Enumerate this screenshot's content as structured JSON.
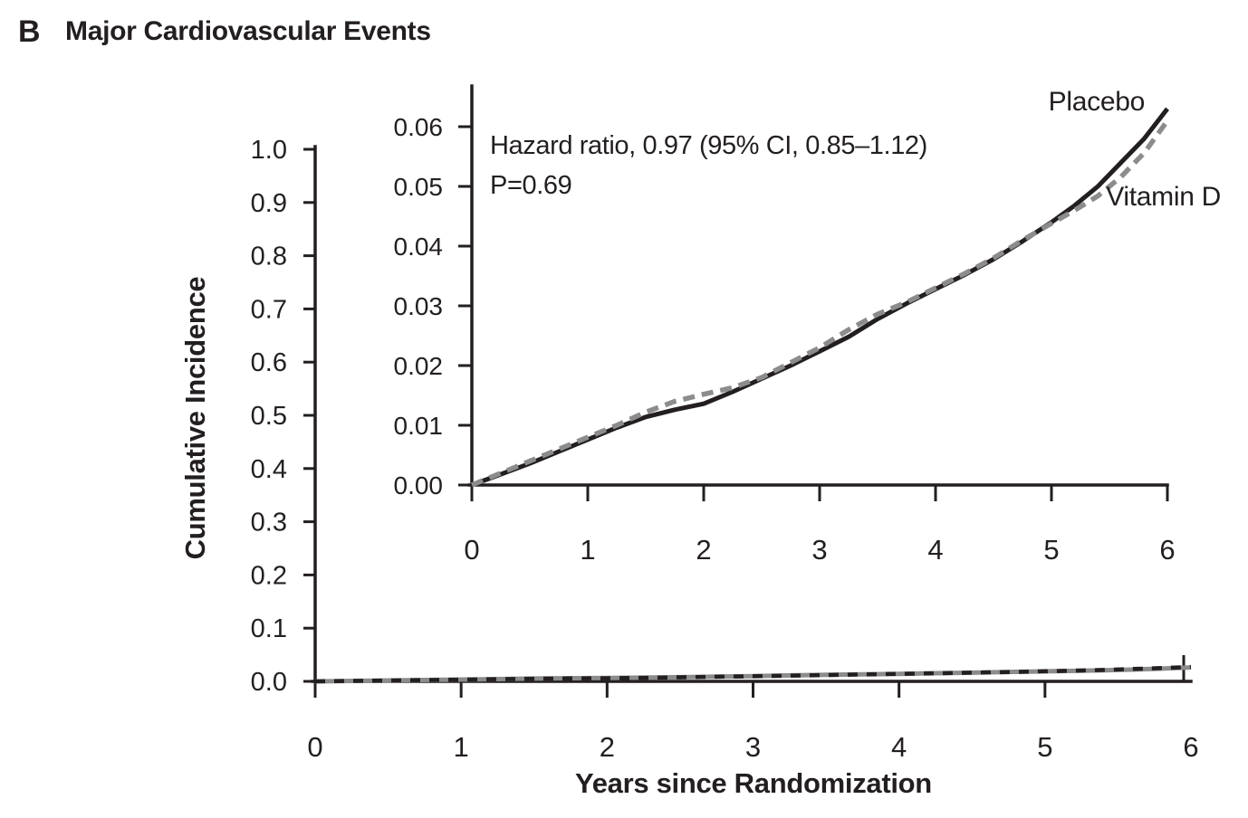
{
  "figure": {
    "panel_label": "B",
    "title": "Major Cardiovascular Events"
  },
  "legend": {
    "placebo": "Placebo",
    "vitamin_d": "Vitamin D"
  },
  "annotation": {
    "line1": "Hazard ratio, 0.97 (95% CI, 0.85–1.12)",
    "line2": "P=0.69"
  },
  "chart_data": {
    "type": "line",
    "title": "B Major Cardiovascular Events",
    "xlabel": "Years since Randomization",
    "ylabel": "Cumulative Incidence",
    "grid": false,
    "legend_position": "inline-right-of-curves",
    "annotation": [
      "Hazard ratio, 0.97 (95% CI, 0.85–1.12)",
      "P=0.69"
    ],
    "main_panel": {
      "xlim": [
        0,
        6
      ],
      "ylim": [
        0,
        1.0
      ],
      "xticks": [
        "0",
        "1",
        "2",
        "3",
        "4",
        "5",
        "6"
      ],
      "yticks": [
        "0.0",
        "0.1",
        "0.2",
        "0.3",
        "0.4",
        "0.5",
        "0.6",
        "0.7",
        "0.8",
        "0.9",
        "1.0"
      ]
    },
    "inset_panel": {
      "xlim": [
        0,
        6
      ],
      "ylim": [
        0,
        0.06
      ],
      "xticks": [
        "0",
        "1",
        "2",
        "3",
        "4",
        "5",
        "6"
      ],
      "yticks": [
        "0.00",
        "0.01",
        "0.02",
        "0.03",
        "0.04",
        "0.05",
        "0.06"
      ]
    },
    "series": [
      {
        "name": "Placebo",
        "color": "#231f20",
        "line_style": "solid",
        "x": [
          0,
          0.25,
          0.5,
          0.75,
          1,
          1.25,
          1.5,
          1.75,
          2,
          2.25,
          2.5,
          2.75,
          3,
          3.25,
          3.5,
          3.75,
          4,
          4.25,
          4.5,
          4.75,
          5,
          5.2,
          5.4,
          5.6,
          5.8,
          6
        ],
        "y": [
          0,
          0.0018,
          0.0036,
          0.0056,
          0.0076,
          0.0096,
          0.0114,
          0.0126,
          0.0136,
          0.0156,
          0.0178,
          0.02,
          0.0224,
          0.0248,
          0.0278,
          0.0304,
          0.0328,
          0.0352,
          0.0378,
          0.0408,
          0.044,
          0.0468,
          0.05,
          0.054,
          0.058,
          0.063
        ]
      },
      {
        "name": "Vitamin D",
        "color": "#8c8c8c",
        "line_style": "dashed",
        "x": [
          0,
          0.25,
          0.5,
          0.75,
          1,
          1.25,
          1.5,
          1.75,
          2,
          2.25,
          2.5,
          2.75,
          3,
          3.25,
          3.5,
          3.75,
          4,
          4.25,
          4.5,
          4.75,
          5,
          5.2,
          5.4,
          5.6,
          5.8,
          6
        ],
        "y": [
          0,
          0.002,
          0.004,
          0.006,
          0.008,
          0.01,
          0.0122,
          0.014,
          0.0152,
          0.0163,
          0.018,
          0.0205,
          0.023,
          0.026,
          0.0286,
          0.0306,
          0.033,
          0.0354,
          0.038,
          0.041,
          0.0438,
          0.046,
          0.0484,
          0.0516,
          0.0556,
          0.061
        ]
      }
    ]
  }
}
